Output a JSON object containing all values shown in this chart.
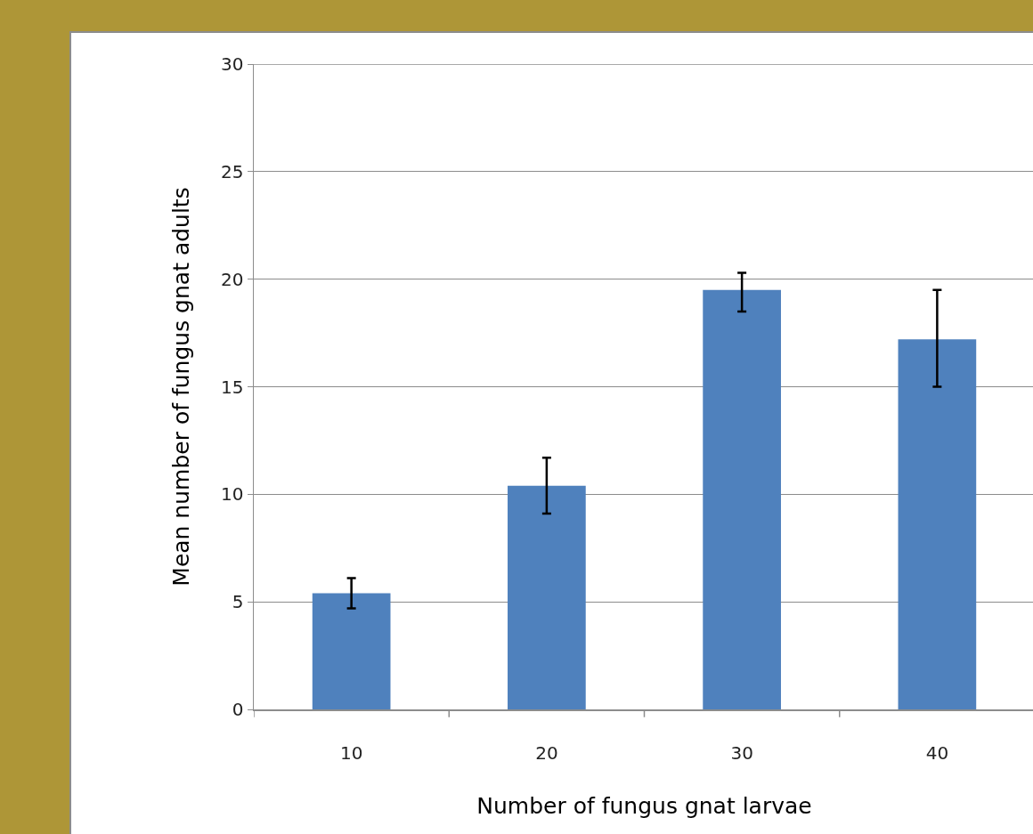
{
  "chart_data": {
    "type": "bar",
    "xlabel": "Number of fungus gnat larvae",
    "ylabel": "Mean number of fungus gnat adults",
    "categories": [
      "10",
      "20",
      "30",
      "40"
    ],
    "values": [
      5.4,
      10.4,
      19.5,
      17.2
    ],
    "errors": [
      [
        4.7,
        6.1
      ],
      [
        9.1,
        11.7
      ],
      [
        18.5,
        20.3
      ],
      [
        15.0,
        19.5
      ]
    ],
    "color": "#4f81bd",
    "ylim": [
      0,
      30
    ],
    "yticks": [
      0,
      5,
      10,
      15,
      20,
      25,
      30
    ],
    "grid": "y"
  }
}
